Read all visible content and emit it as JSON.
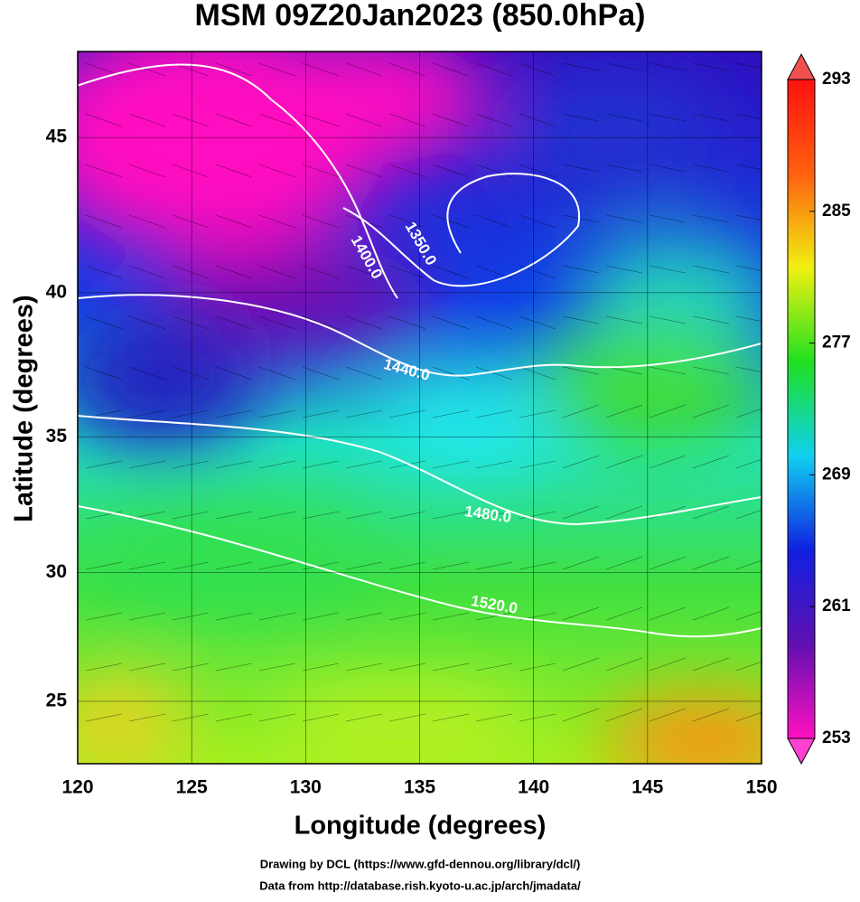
{
  "title": "MSM 09Z20Jan2023 (850.0hPa)",
  "map": {
    "projection": "mercator",
    "xlabel": "Longitude (degrees)",
    "ylabel": "Latitude  (degrees)",
    "xlim": [
      120,
      150
    ],
    "ylim": [
      22.5,
      47.6
    ],
    "xticks": [
      120,
      125,
      130,
      135,
      140,
      145,
      150
    ],
    "yticks": [
      25,
      30,
      35,
      40,
      45
    ],
    "grid": true,
    "contour_levels": [
      1350,
      1400,
      1440,
      1480,
      1520
    ],
    "contour_labels": [
      "1350.0",
      "1400.0",
      "1440.0",
      "1480.0",
      "1520.0"
    ]
  },
  "colorbar": {
    "lim": [
      253,
      293
    ],
    "ticks": [
      253,
      261,
      269,
      277,
      285,
      293
    ],
    "colors": [
      "#ff10c0",
      "#6010b0",
      "#1020e0",
      "#10d0f0",
      "#20e020",
      "#f0f010",
      "#ff6010",
      "#ff1010"
    ]
  },
  "credits": [
    "Drawing by DCL (https://www.gfd-dennou.org/library/dcl/)",
    "Data from http://database.rish.kyoto-u.ac.jp/arch/jmadata/"
  ]
}
